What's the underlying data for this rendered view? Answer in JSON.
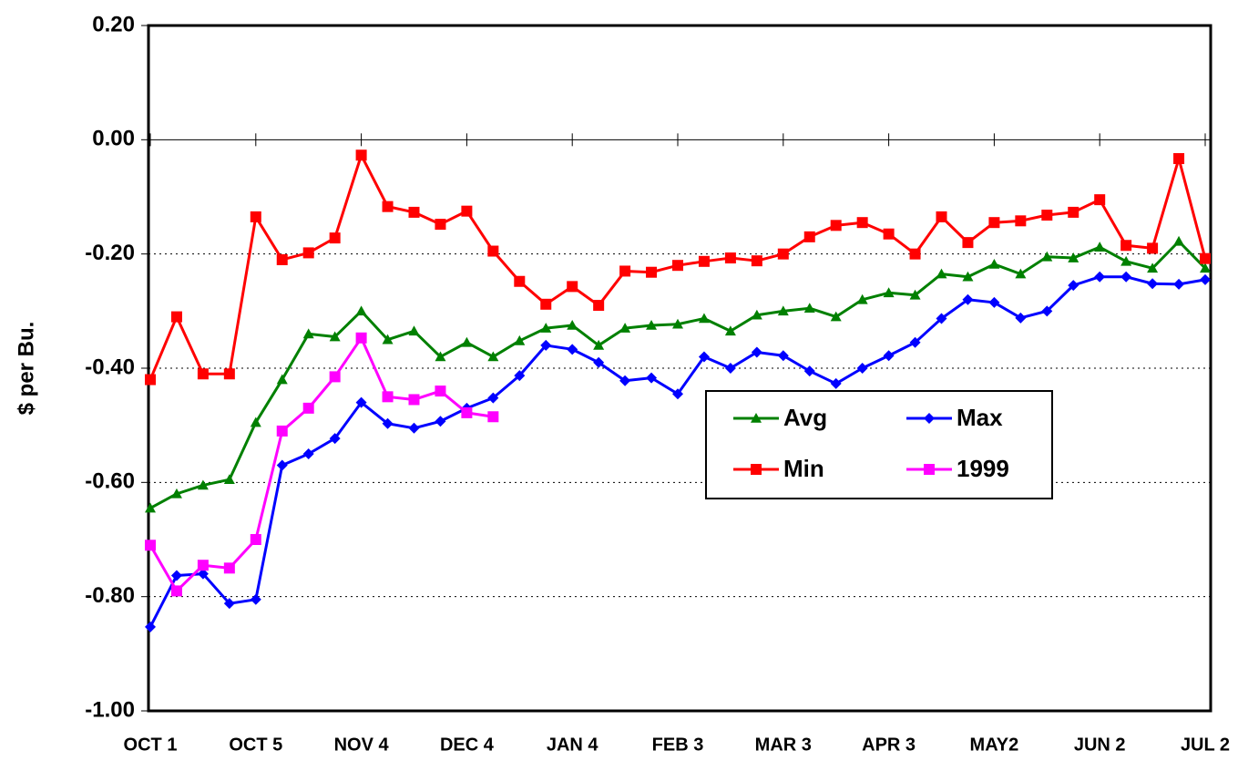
{
  "chart_data": {
    "type": "line",
    "y_axis_label": "$ per Bu.",
    "categories": [
      "OCT 1",
      null,
      null,
      null,
      "OCT 5",
      null,
      null,
      null,
      "NOV 4",
      null,
      null,
      null,
      "DEC 4",
      null,
      null,
      null,
      "JAN 4",
      null,
      null,
      null,
      "FEB 3",
      null,
      null,
      null,
      "MAR 3",
      null,
      null,
      null,
      "APR 3",
      null,
      null,
      null,
      "MAY2",
      null,
      null,
      null,
      "JUN 2",
      null,
      null,
      null,
      "JUL 2"
    ],
    "ylim": [
      -1.0,
      0.2
    ],
    "yticks": [
      {
        "value": 0.2,
        "label": "0.20"
      },
      {
        "value": 0,
        "label": "0.00"
      },
      {
        "value": -0.2,
        "label": "-0.20"
      },
      {
        "value": -0.4,
        "label": "-0.40"
      },
      {
        "value": -0.6,
        "label": "-0.60"
      },
      {
        "value": -0.8,
        "label": "-0.80"
      },
      {
        "value": -1.0,
        "label": "-1.00"
      }
    ],
    "grid": true,
    "legend": "lower right",
    "series": [
      {
        "name": "Avg",
        "color": "#008000",
        "marker": "triangle",
        "values": [
          -0.645,
          -0.62,
          -0.605,
          -0.595,
          -0.495,
          -0.42,
          -0.34,
          -0.345,
          -0.3,
          -0.35,
          -0.335,
          -0.38,
          -0.355,
          -0.38,
          -0.352,
          -0.33,
          -0.325,
          -0.36,
          -0.33,
          -0.325,
          -0.323,
          -0.313,
          -0.335,
          -0.307,
          -0.3,
          -0.295,
          -0.31,
          -0.28,
          -0.268,
          -0.272,
          -0.235,
          -0.24,
          -0.218,
          -0.235,
          -0.205,
          -0.207,
          -0.188,
          -0.213,
          -0.225,
          -0.178,
          -0.225
        ]
      },
      {
        "name": "Max",
        "color": "#0000ff",
        "marker": "diamond",
        "values": [
          -0.853,
          -0.763,
          -0.76,
          -0.812,
          -0.805,
          -0.57,
          -0.55,
          -0.523,
          -0.46,
          -0.497,
          -0.505,
          -0.493,
          -0.47,
          -0.452,
          -0.413,
          -0.36,
          -0.367,
          -0.39,
          -0.422,
          -0.417,
          -0.445,
          -0.38,
          -0.4,
          -0.372,
          -0.378,
          -0.405,
          -0.427,
          -0.4,
          -0.378,
          -0.355,
          -0.313,
          -0.28,
          -0.285,
          -0.312,
          -0.3,
          -0.255,
          -0.24,
          -0.24,
          -0.252,
          -0.253,
          -0.245
        ]
      },
      {
        "name": "Min",
        "color": "#ff0000",
        "marker": "square",
        "values": [
          -0.42,
          -0.31,
          -0.41,
          -0.41,
          -0.135,
          -0.21,
          -0.198,
          -0.172,
          -0.027,
          -0.117,
          -0.127,
          -0.148,
          -0.125,
          -0.195,
          -0.248,
          -0.288,
          -0.257,
          -0.29,
          -0.23,
          -0.232,
          -0.22,
          -0.213,
          -0.207,
          -0.212,
          -0.2,
          -0.17,
          -0.15,
          -0.145,
          -0.165,
          -0.2,
          -0.135,
          -0.18,
          -0.145,
          -0.142,
          -0.132,
          -0.127,
          -0.105,
          -0.185,
          -0.19,
          -0.033,
          -0.208
        ]
      },
      {
        "name": "1999",
        "color": "#ff00ff",
        "marker": "square",
        "values": [
          -0.71,
          -0.79,
          -0.745,
          -0.75,
          -0.7,
          -0.51,
          -0.47,
          -0.415,
          -0.347,
          -0.45,
          -0.455,
          -0.44,
          -0.478,
          -0.485,
          null,
          null,
          null,
          null,
          null,
          null,
          null,
          null,
          null,
          null,
          null,
          null,
          null,
          null,
          null,
          null,
          null,
          null,
          null,
          null,
          null,
          null,
          null,
          null,
          null,
          null,
          null
        ]
      }
    ]
  }
}
